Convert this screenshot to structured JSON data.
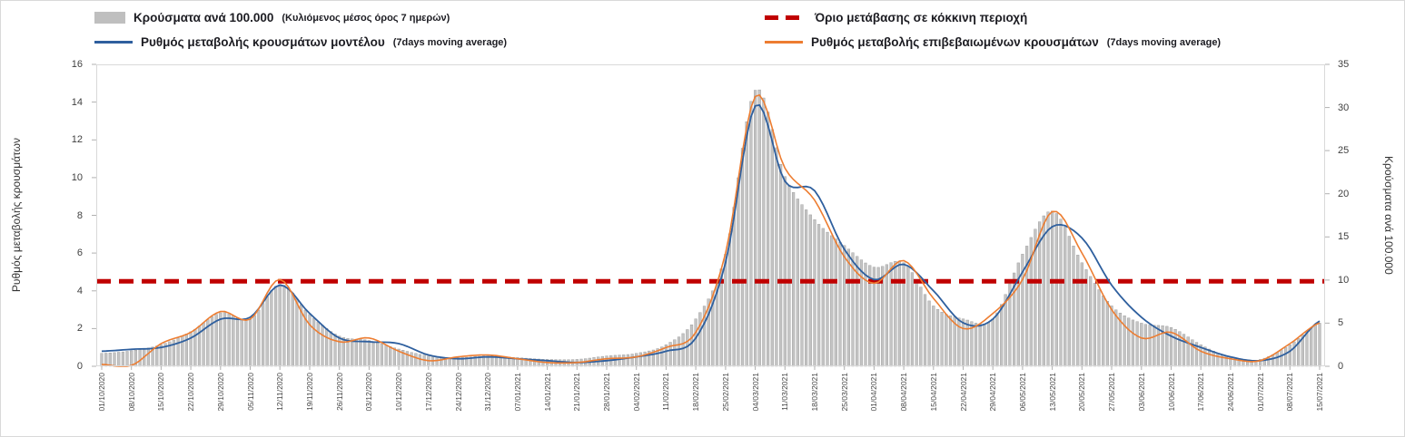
{
  "legend": {
    "items": [
      {
        "main": "Κρούσματα ανά 100.000",
        "suffix": "(Κυλιόμενος μέσος όρος 7 ημερών)",
        "color": "#bfbfbf",
        "swatch": "bar"
      },
      {
        "main": "Ρυθμός μεταβολής κρουσμάτων μοντέλου",
        "suffix": "(7days moving average)",
        "color": "#2e5f9e",
        "swatch": "line"
      },
      {
        "main": "Όριο μετάβασης σε κόκκινη περιοχή",
        "suffix": "",
        "color": "#c00000",
        "swatch": "dash"
      },
      {
        "main": "Ρυθμός μεταβολής επιβεβαιωμένων κρουσμάτων",
        "suffix": "(7days moving average)",
        "color": "#ed7d31",
        "swatch": "line"
      }
    ]
  },
  "axes": {
    "left": {
      "label": "Ρυθμός μεταβολής κρουσμάτων",
      "ticks": [
        0,
        2,
        4,
        6,
        8,
        10,
        12,
        14,
        16
      ]
    },
    "right": {
      "label": "Κρούσματα ανά 100.000",
      "ticks": [
        0,
        5,
        10,
        15,
        20,
        25,
        30,
        35
      ]
    }
  },
  "chart_data": {
    "type": "combo",
    "legend_position": "top",
    "grid": false,
    "ylabel_left": "Ρυθμός μεταβολής κρουσμάτων",
    "ylabel_right": "Κρούσματα ανά 100.000",
    "ylim_left": [
      0,
      16
    ],
    "ylim_right": [
      0,
      35
    ],
    "categories": [
      "01/10/2020",
      "08/10/2020",
      "15/10/2020",
      "22/10/2020",
      "29/10/2020",
      "05/11/2020",
      "12/11/2020",
      "19/11/2020",
      "26/11/2020",
      "03/12/2020",
      "10/12/2020",
      "17/12/2020",
      "24/12/2020",
      "31/12/2020",
      "07/01/2021",
      "14/01/2021",
      "21/01/2021",
      "28/01/2021",
      "04/02/2021",
      "11/02/2021",
      "18/02/2021",
      "25/02/2021",
      "04/03/2021",
      "11/03/2021",
      "18/03/2021",
      "25/03/2021",
      "01/04/2021",
      "08/04/2021",
      "15/04/2021",
      "22/04/2021",
      "29/04/2021",
      "06/05/2021",
      "13/05/2021",
      "20/05/2021",
      "27/05/2021",
      "03/06/2021",
      "10/06/2021",
      "17/06/2021",
      "24/06/2021",
      "01/07/2021",
      "08/07/2021",
      "15/07/2021"
    ],
    "series": [
      {
        "name": "Κρούσματα ανά 100.000 (Κυλιόμενος μέσος όρος 7 ημερών)",
        "type": "bar",
        "axis": "right",
        "color": "#c4c4c4",
        "values": [
          1.5,
          1.8,
          2.5,
          4,
          6.2,
          5.5,
          9.5,
          6,
          3.5,
          3,
          2,
          1.2,
          1,
          1.2,
          1,
          0.8,
          0.8,
          1.2,
          1.5,
          2.5,
          5.5,
          13,
          32,
          22,
          17,
          14,
          11.5,
          12,
          7,
          5.5,
          5.5,
          13,
          18,
          12,
          7,
          5,
          4.5,
          2.5,
          1,
          0.8,
          2.5,
          5
        ]
      },
      {
        "name": "Ρυθμός μεταβολής κρουσμάτων μοντέλου (7days moving average)",
        "type": "line",
        "axis": "left",
        "color": "#2e5f9e",
        "values": [
          0.8,
          0.9,
          1.0,
          1.5,
          2.5,
          2.6,
          4.3,
          2.8,
          1.5,
          1.3,
          1.2,
          0.6,
          0.4,
          0.5,
          0.4,
          0.3,
          0.2,
          0.3,
          0.5,
          0.8,
          1.5,
          5.5,
          13.8,
          9.8,
          9.3,
          6.2,
          4.6,
          5.4,
          4.0,
          2.3,
          2.5,
          5.0,
          7.4,
          6.8,
          4.3,
          2.6,
          1.6,
          1.0,
          0.5,
          0.3,
          0.8,
          2.4
        ]
      },
      {
        "name": "Ρυθμός μεταβολής επιβεβαιωμένων κρουσμάτων (7days moving average)",
        "type": "line",
        "axis": "left",
        "color": "#ed7d31",
        "values": [
          0.1,
          0.05,
          1.2,
          1.8,
          2.9,
          2.5,
          4.6,
          2.2,
          1.3,
          1.5,
          0.8,
          0.3,
          0.5,
          0.6,
          0.4,
          0.2,
          0.2,
          0.4,
          0.5,
          1.0,
          1.8,
          6.0,
          14.3,
          10.5,
          8.8,
          5.8,
          4.4,
          5.6,
          3.6,
          2.0,
          2.8,
          4.6,
          8.2,
          6.0,
          3.0,
          1.5,
          1.8,
          0.8,
          0.4,
          0.3,
          1.2,
          2.3
        ]
      },
      {
        "name": "Όριο μετάβασης σε κόκκινη περιοχή",
        "type": "threshold",
        "axis": "left",
        "color": "#c00000",
        "value": 4.5
      }
    ]
  }
}
